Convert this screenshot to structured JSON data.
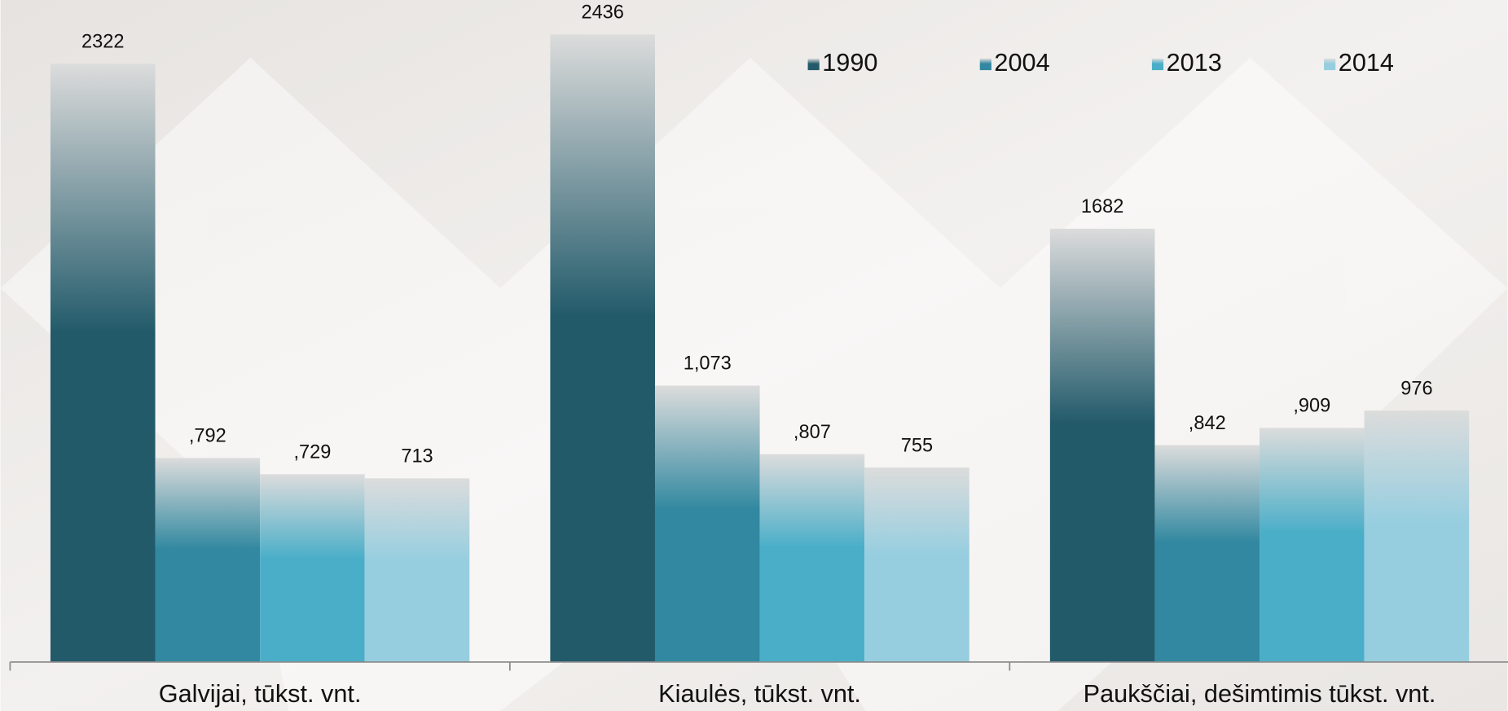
{
  "chart_data": {
    "type": "bar",
    "categories": [
      "Galvijai, tūkst. vnt.",
      "Kiaulės, tūkst. vnt.",
      "Paukščiai, dešimtimis tūkst. vnt."
    ],
    "series": [
      {
        "name": "1990",
        "color": "#225a6a",
        "values": [
          2322,
          2436,
          1682
        ]
      },
      {
        "name": "2004",
        "color": "#3188a0",
        "values": [
          792,
          1073,
          842
        ],
        "value_labels": [
          ",792",
          "1,073",
          ",842"
        ]
      },
      {
        "name": "2013",
        "color": "#4aaec8",
        "values": [
          729,
          807,
          909
        ],
        "value_labels": [
          ",729",
          ",807",
          ",909"
        ]
      },
      {
        "name": "2014",
        "color": "#96cee0",
        "values": [
          713,
          755,
          976
        ]
      }
    ],
    "ylim": [
      0,
      2570
    ],
    "legend": "top-right"
  }
}
